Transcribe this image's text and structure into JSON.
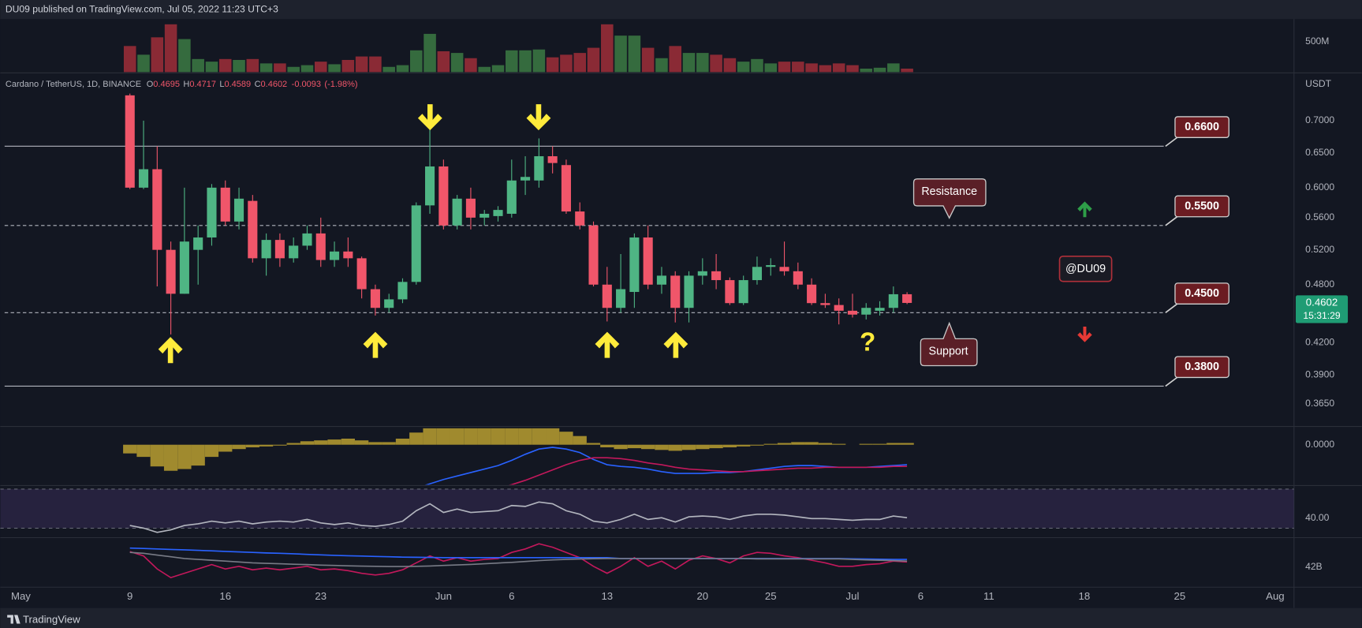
{
  "chart_data": {
    "type": "candlestick",
    "title": "DU09 published on TradingView.com, Jul 05, 2022 11:23 UTC+3",
    "symbol": "Cardano / TetherUS, 1D, BINANCE",
    "ohlc_labels": [
      "O",
      "H",
      "L",
      "C"
    ],
    "change": -0.0093,
    "change_pct": {
      "value": -1.98,
      "label": "(-1.98%)"
    },
    "currency": "USDT",
    "countdown": "15:31:29",
    "footer": "TradingView",
    "log_scale": true,
    "up_color": "#4fb584",
    "down_color": "#f0566a",
    "x": [
      "2022-05-09",
      "2022-05-10",
      "2022-05-11",
      "2022-05-12",
      "2022-05-13",
      "2022-05-14",
      "2022-05-15",
      "2022-05-16",
      "2022-05-17",
      "2022-05-18",
      "2022-05-19",
      "2022-05-20",
      "2022-05-21",
      "2022-05-22",
      "2022-05-23",
      "2022-05-24",
      "2022-05-25",
      "2022-05-26",
      "2022-05-27",
      "2022-05-28",
      "2022-05-29",
      "2022-05-30",
      "2022-05-31",
      "2022-06-01",
      "2022-06-02",
      "2022-06-03",
      "2022-06-04",
      "2022-06-05",
      "2022-06-06",
      "2022-06-07",
      "2022-06-08",
      "2022-06-09",
      "2022-06-10",
      "2022-06-11",
      "2022-06-12",
      "2022-06-13",
      "2022-06-14",
      "2022-06-15",
      "2022-06-16",
      "2022-06-17",
      "2022-06-18",
      "2022-06-19",
      "2022-06-20",
      "2022-06-21",
      "2022-06-22",
      "2022-06-23",
      "2022-06-24",
      "2022-06-25",
      "2022-06-26",
      "2022-06-27",
      "2022-06-28",
      "2022-06-29",
      "2022-06-30",
      "2022-07-01",
      "2022-07-02",
      "2022-07-03",
      "2022-07-04",
      "2022-07-05"
    ],
    "open": [
      0.742,
      0.6,
      0.626,
      0.52,
      0.47,
      0.52,
      0.535,
      0.6,
      0.555,
      0.582,
      0.51,
      0.532,
      0.51,
      0.525,
      0.54,
      0.508,
      0.518,
      0.51,
      0.475,
      0.455,
      0.464,
      0.483,
      0.576,
      0.63,
      0.55,
      0.585,
      0.56,
      0.562,
      0.565,
      0.61,
      0.61,
      0.645,
      0.632,
      0.568,
      0.55,
      0.48,
      0.455,
      0.472,
      0.535,
      0.48,
      0.49,
      0.455,
      0.49,
      0.495,
      0.485,
      0.46,
      0.485,
      0.5,
      0.5,
      0.495,
      0.48,
      0.46,
      0.458,
      0.452,
      0.448,
      0.452,
      0.455,
      0.4695
    ],
    "high": [
      0.745,
      0.7,
      0.66,
      0.53,
      0.6,
      0.55,
      0.605,
      0.61,
      0.6,
      0.59,
      0.54,
      0.54,
      0.535,
      0.55,
      0.56,
      0.53,
      0.535,
      0.512,
      0.48,
      0.47,
      0.487,
      0.58,
      0.69,
      0.64,
      0.59,
      0.6,
      0.57,
      0.575,
      0.64,
      0.645,
      0.672,
      0.66,
      0.64,
      0.58,
      0.555,
      0.5,
      0.515,
      0.54,
      0.55,
      0.5,
      0.495,
      0.495,
      0.51,
      0.515,
      0.488,
      0.49,
      0.512,
      0.51,
      0.53,
      0.505,
      0.487,
      0.47,
      0.465,
      0.47,
      0.46,
      0.462,
      0.478,
      0.4717
    ],
    "low": [
      0.598,
      0.598,
      0.478,
      0.428,
      0.47,
      0.48,
      0.525,
      0.55,
      0.545,
      0.505,
      0.49,
      0.5,
      0.505,
      0.52,
      0.5,
      0.5,
      0.5,
      0.465,
      0.447,
      0.45,
      0.46,
      0.48,
      0.565,
      0.545,
      0.545,
      0.545,
      0.55,
      0.555,
      0.56,
      0.59,
      0.6,
      0.62,
      0.565,
      0.545,
      0.478,
      0.441,
      0.45,
      0.455,
      0.475,
      0.47,
      0.44,
      0.44,
      0.48,
      0.475,
      0.458,
      0.458,
      0.48,
      0.49,
      0.49,
      0.475,
      0.458,
      0.455,
      0.438,
      0.445,
      0.443,
      0.447,
      0.45,
      0.4589
    ],
    "close": [
      0.6,
      0.626,
      0.52,
      0.47,
      0.53,
      0.535,
      0.6,
      0.555,
      0.585,
      0.51,
      0.532,
      0.51,
      0.525,
      0.54,
      0.508,
      0.518,
      0.51,
      0.475,
      0.455,
      0.464,
      0.483,
      0.576,
      0.63,
      0.55,
      0.585,
      0.56,
      0.565,
      0.57,
      0.61,
      0.615,
      0.645,
      0.635,
      0.568,
      0.55,
      0.48,
      0.455,
      0.475,
      0.535,
      0.48,
      0.49,
      0.455,
      0.49,
      0.495,
      0.485,
      0.46,
      0.485,
      0.5,
      0.502,
      0.495,
      0.48,
      0.46,
      0.458,
      0.452,
      0.448,
      0.455,
      0.455,
      0.4695,
      0.4602
    ],
    "xlim": [
      "2022-04-30",
      "2022-08-02"
    ],
    "xticks": [
      {
        "value": "2022-05-01",
        "label": "May"
      },
      {
        "value": "2022-05-09",
        "label": "9"
      },
      {
        "value": "2022-05-16",
        "label": "16"
      },
      {
        "value": "2022-05-23",
        "label": "23"
      },
      {
        "value": "2022-06-01",
        "label": "Jun"
      },
      {
        "value": "2022-06-06",
        "label": "6"
      },
      {
        "value": "2022-06-13",
        "label": "13"
      },
      {
        "value": "2022-06-20",
        "label": "20"
      },
      {
        "value": "2022-06-25",
        "label": "25"
      },
      {
        "value": "2022-07-01",
        "label": "Jul"
      },
      {
        "value": "2022-07-06",
        "label": "6"
      },
      {
        "value": "2022-07-11",
        "label": "11"
      },
      {
        "value": "2022-07-18",
        "label": "18"
      },
      {
        "value": "2022-07-25",
        "label": "25"
      },
      {
        "value": "2022-08-01",
        "label": "Aug"
      }
    ],
    "ylim": [
      0.347,
      0.775
    ],
    "yticks": [
      {
        "value": 0.7,
        "label": "0.7000"
      },
      {
        "value": 0.65,
        "label": "0.6500"
      },
      {
        "value": 0.6,
        "label": "0.6000"
      },
      {
        "value": 0.56,
        "label": "0.5600"
      },
      {
        "value": 0.52,
        "label": "0.5200"
      },
      {
        "value": 0.48,
        "label": "0.4800"
      },
      {
        "value": 0.42,
        "label": "0.4200"
      },
      {
        "value": 0.39,
        "label": "0.3900"
      },
      {
        "value": 0.365,
        "label": "0.3650"
      }
    ],
    "levels": [
      {
        "value": 0.66,
        "label": "0.6600",
        "style": "solid"
      },
      {
        "value": 0.55,
        "label": "0.5500",
        "style": "dashed"
      },
      {
        "value": 0.45,
        "label": "0.4500",
        "style": "dashed"
      },
      {
        "value": 0.38,
        "label": "0.3800",
        "style": "solid"
      }
    ],
    "annotations": [
      "Resistance",
      "Support",
      "@DU09",
      "?"
    ],
    "volume": {
      "values": [
        429000000,
        286000000,
        572000000,
        786000000,
        543000000,
        215000000,
        172000000,
        215000000,
        200000000,
        215000000,
        143000000,
        143000000,
        86000000,
        114000000,
        172000000,
        129000000,
        200000000,
        257000000,
        257000000,
        86000000,
        114000000,
        358000000,
        629000000,
        343000000,
        315000000,
        229000000,
        86000000,
        114000000,
        358000000,
        358000000,
        372000000,
        243000000,
        286000000,
        315000000,
        400000000,
        786000000,
        600000000,
        600000000,
        400000000,
        229000000,
        429000000,
        315000000,
        315000000,
        286000000,
        229000000,
        172000000,
        215000000,
        143000000,
        172000000,
        172000000,
        143000000,
        114000000,
        143000000,
        114000000,
        57000000,
        72000000,
        143000000,
        57000000
      ],
      "up_color": "#356b3e",
      "down_color": "#8a2a35",
      "ylim": [
        0,
        786000000
      ],
      "yticks": [
        {
          "value": 500000000,
          "label": "500M"
        }
      ]
    },
    "macd": {
      "histogram": {
        "color": "#a08a2e",
        "values": [
          -0.01,
          -0.014,
          -0.025,
          -0.03,
          -0.028,
          -0.024,
          -0.014,
          -0.008,
          -0.005,
          -0.003,
          -0.002,
          -0.001,
          0.002,
          0.004,
          0.005,
          0.006,
          0.007,
          0.005,
          0.003,
          0.003,
          0.007,
          0.014,
          0.019,
          0.019,
          0.019,
          0.019,
          0.019,
          0.019,
          0.019,
          0.019,
          0.019,
          0.019,
          0.015,
          0.01,
          0.002,
          -0.003,
          -0.005,
          -0.004,
          -0.005,
          -0.006,
          -0.007,
          -0.006,
          -0.005,
          -0.004,
          -0.003,
          -0.002,
          -0.001,
          0.001,
          0.002,
          0.003,
          0.003,
          0.002,
          0.001,
          0.0,
          0.001,
          0.001,
          0.002,
          0.002
        ]
      },
      "series": [
        {
          "color": "#2962ff",
          "values": [
            null,
            null,
            null,
            null,
            null,
            null,
            null,
            null,
            null,
            null,
            null,
            null,
            null,
            null,
            null,
            null,
            null,
            null,
            null,
            null,
            null,
            -0.05,
            -0.045,
            -0.04,
            -0.036,
            -0.032,
            -0.028,
            -0.024,
            -0.018,
            -0.011,
            -0.005,
            -0.003,
            -0.005,
            -0.009,
            -0.017,
            -0.023,
            -0.025,
            -0.026,
            -0.028,
            -0.031,
            -0.033,
            -0.033,
            -0.033,
            -0.032,
            -0.032,
            -0.031,
            -0.029,
            -0.027,
            -0.025,
            -0.024,
            -0.024,
            -0.025,
            -0.026,
            -0.026,
            -0.026,
            -0.025,
            -0.024,
            -0.023
          ]
        },
        {
          "color": "#c2185b",
          "values": [
            null,
            null,
            null,
            null,
            null,
            null,
            null,
            null,
            null,
            null,
            null,
            null,
            null,
            null,
            null,
            null,
            null,
            null,
            null,
            null,
            null,
            null,
            null,
            null,
            null,
            null,
            null,
            -0.05,
            -0.046,
            -0.041,
            -0.035,
            -0.029,
            -0.023,
            -0.018,
            -0.015,
            -0.015,
            -0.016,
            -0.018,
            -0.021,
            -0.023,
            -0.026,
            -0.028,
            -0.029,
            -0.03,
            -0.031,
            -0.031,
            -0.03,
            -0.029,
            -0.028,
            -0.027,
            -0.027,
            -0.026,
            -0.026,
            -0.026,
            -0.026,
            -0.026,
            -0.025,
            -0.025
          ]
        }
      ],
      "ylim": [
        -0.046,
        0.019
      ],
      "yticks": [
        {
          "value": 0,
          "label": "0.0000"
        }
      ]
    },
    "rsi": {
      "color": "#b2b5be",
      "band": [
        30,
        70
      ],
      "band_color": "#7e57c2",
      "values": [
        32.7,
        30.0,
        25.6,
        28.2,
        32.7,
        34.4,
        37.1,
        35.3,
        37.1,
        34.4,
        36.2,
        37.1,
        36.2,
        38.9,
        35.3,
        33.6,
        35.3,
        32.7,
        31.8,
        33.6,
        37.1,
        47.8,
        54.9,
        46.0,
        49.6,
        46.0,
        46.9,
        47.8,
        53.1,
        52.2,
        56.7,
        54.9,
        47.8,
        44.2,
        37.1,
        35.3,
        38.9,
        44.2,
        38.9,
        40.7,
        36.2,
        41.6,
        42.4,
        41.6,
        38.9,
        42.4,
        44.2,
        44.2,
        43.3,
        41.6,
        39.8,
        39.8,
        38.9,
        38.0,
        38.9,
        38.9,
        42.4,
        40.7
      ],
      "ylim": [
        21.1,
        72.7
      ],
      "yticks": [
        {
          "value": 40,
          "label": "40.00"
        }
      ]
    },
    "obv": {
      "series": [
        {
          "color": "#c2185b",
          "values": [
            42.9,
            42.65,
            41.9,
            41.4,
            41.65,
            41.9,
            42.15,
            41.9,
            42.05,
            41.85,
            41.95,
            41.85,
            41.95,
            42.05,
            41.85,
            41.9,
            41.8,
            41.65,
            41.55,
            41.65,
            41.85,
            42.25,
            42.65,
            42.35,
            42.55,
            42.35,
            42.45,
            42.5,
            42.85,
            43.05,
            43.35,
            43.15,
            42.85,
            42.55,
            42.05,
            41.65,
            42.05,
            42.55,
            42.05,
            42.35,
            41.9,
            42.4,
            42.65,
            42.5,
            42.25,
            42.65,
            42.85,
            42.8,
            42.65,
            42.55,
            42.4,
            42.25,
            42.05,
            42.05,
            42.15,
            42.2,
            42.35,
            42.3
          ]
        },
        {
          "color": "#2962ff",
          "values": [
            43.1,
            43.08,
            43.05,
            43.02,
            43.0,
            42.97,
            42.94,
            42.91,
            42.88,
            42.85,
            42.82,
            42.8,
            42.77,
            42.74,
            42.71,
            42.68,
            42.66,
            42.64,
            42.62,
            42.6,
            42.58,
            42.57,
            42.56,
            42.55,
            42.55,
            42.55,
            42.55,
            42.55,
            42.55,
            42.55,
            42.55,
            42.55,
            42.55,
            42.55,
            42.55,
            42.55,
            42.5,
            42.5,
            42.5,
            42.5,
            42.5,
            42.5,
            42.5,
            42.5,
            42.5,
            42.5,
            42.5,
            42.5,
            42.5,
            42.5,
            42.5,
            42.5,
            42.5,
            42.48,
            42.47,
            42.46,
            42.45,
            42.45
          ]
        },
        {
          "color": "#787b86",
          "values": [
            42.85,
            42.8,
            42.7,
            42.6,
            42.5,
            42.45,
            42.4,
            42.35,
            42.3,
            42.25,
            42.22,
            42.2,
            42.17,
            42.15,
            42.12,
            42.1,
            42.08,
            42.06,
            42.05,
            42.04,
            42.04,
            42.05,
            42.07,
            42.1,
            42.13,
            42.16,
            42.2,
            42.24,
            42.28,
            42.33,
            42.38,
            42.42,
            42.45,
            42.47,
            42.49,
            42.5,
            42.5,
            42.5,
            42.5,
            42.5,
            42.5,
            42.5,
            42.5,
            42.5,
            42.5,
            42.5,
            42.48,
            42.48,
            42.48,
            42.48,
            42.48,
            42.48,
            42.48,
            42.45,
            42.42,
            42.4,
            42.38,
            42.35
          ]
        }
      ],
      "ylim": [
        40.9,
        43.65
      ],
      "yticks": [
        {
          "value": 42,
          "label": "42B"
        }
      ]
    }
  }
}
